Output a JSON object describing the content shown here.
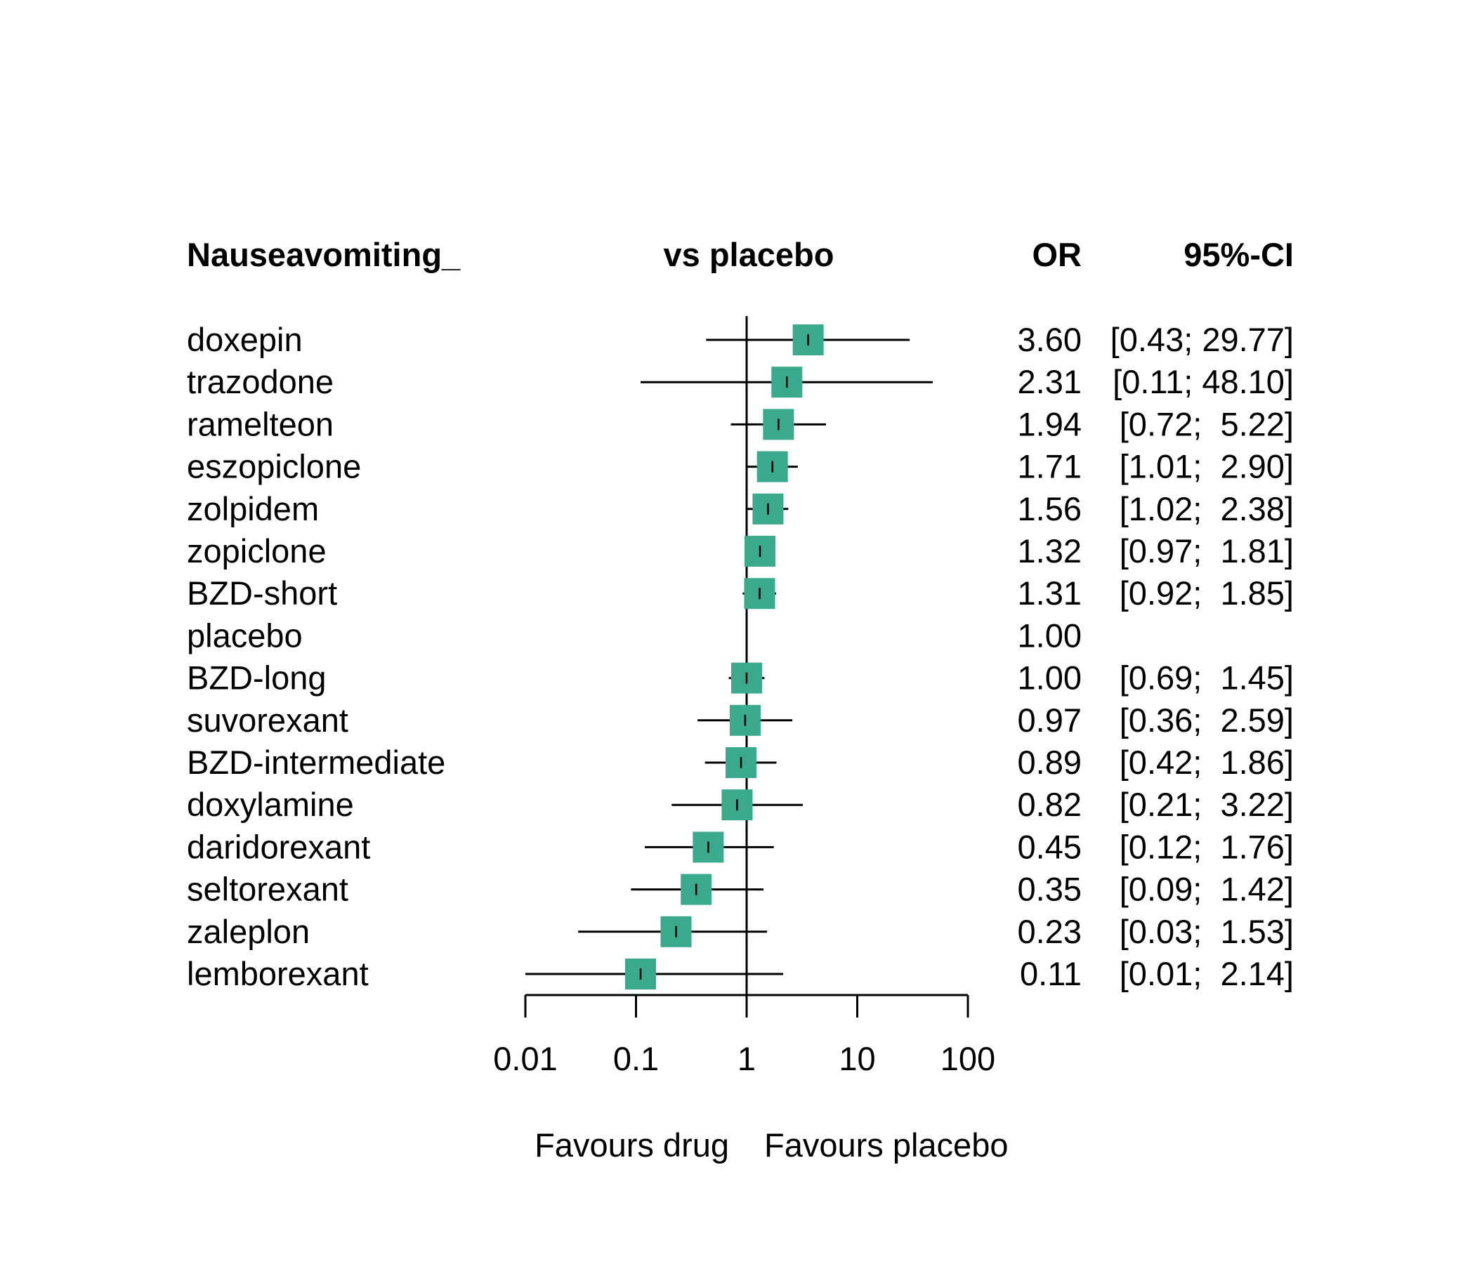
{
  "chart_data": {
    "type": "forest",
    "headers": {
      "label_col": "Nauseavomiting_",
      "comparison": "vs placebo",
      "effect": "OR",
      "ci": "95%-CI"
    },
    "rows": [
      {
        "label": "doxepin",
        "or": 3.6,
        "lower": 0.43,
        "upper": 29.77,
        "or_text": "3.60",
        "ci_text": "[0.43; 29.77]"
      },
      {
        "label": "trazodone",
        "or": 2.31,
        "lower": 0.11,
        "upper": 48.1,
        "or_text": "2.31",
        "ci_text": "[0.11; 48.10]"
      },
      {
        "label": "ramelteon",
        "or": 1.94,
        "lower": 0.72,
        "upper": 5.22,
        "or_text": "1.94",
        "ci_text": "[0.72;  5.22]"
      },
      {
        "label": "eszopiclone",
        "or": 1.71,
        "lower": 1.01,
        "upper": 2.9,
        "or_text": "1.71",
        "ci_text": "[1.01;  2.90]"
      },
      {
        "label": "zolpidem",
        "or": 1.56,
        "lower": 1.02,
        "upper": 2.38,
        "or_text": "1.56",
        "ci_text": "[1.02;  2.38]"
      },
      {
        "label": "zopiclone",
        "or": 1.32,
        "lower": 0.97,
        "upper": 1.81,
        "or_text": "1.32",
        "ci_text": "[0.97;  1.81]"
      },
      {
        "label": "BZD-short",
        "or": 1.31,
        "lower": 0.92,
        "upper": 1.85,
        "or_text": "1.31",
        "ci_text": "[0.92;  1.85]"
      },
      {
        "label": "placebo",
        "or": 1.0,
        "lower": null,
        "upper": null,
        "or_text": "1.00",
        "ci_text": ""
      },
      {
        "label": "BZD-long",
        "or": 1.0,
        "lower": 0.69,
        "upper": 1.45,
        "or_text": "1.00",
        "ci_text": "[0.69;  1.45]"
      },
      {
        "label": "suvorexant",
        "or": 0.97,
        "lower": 0.36,
        "upper": 2.59,
        "or_text": "0.97",
        "ci_text": "[0.36;  2.59]"
      },
      {
        "label": "BZD-intermediate",
        "or": 0.89,
        "lower": 0.42,
        "upper": 1.86,
        "or_text": "0.89",
        "ci_text": "[0.42;  1.86]"
      },
      {
        "label": "doxylamine",
        "or": 0.82,
        "lower": 0.21,
        "upper": 3.22,
        "or_text": "0.82",
        "ci_text": "[0.21;  3.22]"
      },
      {
        "label": "daridorexant",
        "or": 0.45,
        "lower": 0.12,
        "upper": 1.76,
        "or_text": "0.45",
        "ci_text": "[0.12;  1.76]"
      },
      {
        "label": "seltorexant",
        "or": 0.35,
        "lower": 0.09,
        "upper": 1.42,
        "or_text": "0.35",
        "ci_text": "[0.09;  1.42]"
      },
      {
        "label": "zaleplon",
        "or": 0.23,
        "lower": 0.03,
        "upper": 1.53,
        "or_text": "0.23",
        "ci_text": "[0.03;  1.53]"
      },
      {
        "label": "lemborexant",
        "or": 0.11,
        "lower": 0.01,
        "upper": 2.14,
        "or_text": "0.11",
        "ci_text": "[0.01;  2.14]"
      }
    ],
    "x_axis": {
      "scale": "log10",
      "ticks": [
        0.01,
        0.1,
        1,
        10,
        100
      ],
      "tick_labels": [
        "0.01",
        "0.1",
        "1",
        "10",
        "100"
      ],
      "xlim": [
        0.01,
        100
      ],
      "reference_line": 1
    },
    "footer": {
      "left": "Favours drug",
      "right": "Favours placebo"
    },
    "square_color": "#3aa98c",
    "line_color": "#000000"
  }
}
